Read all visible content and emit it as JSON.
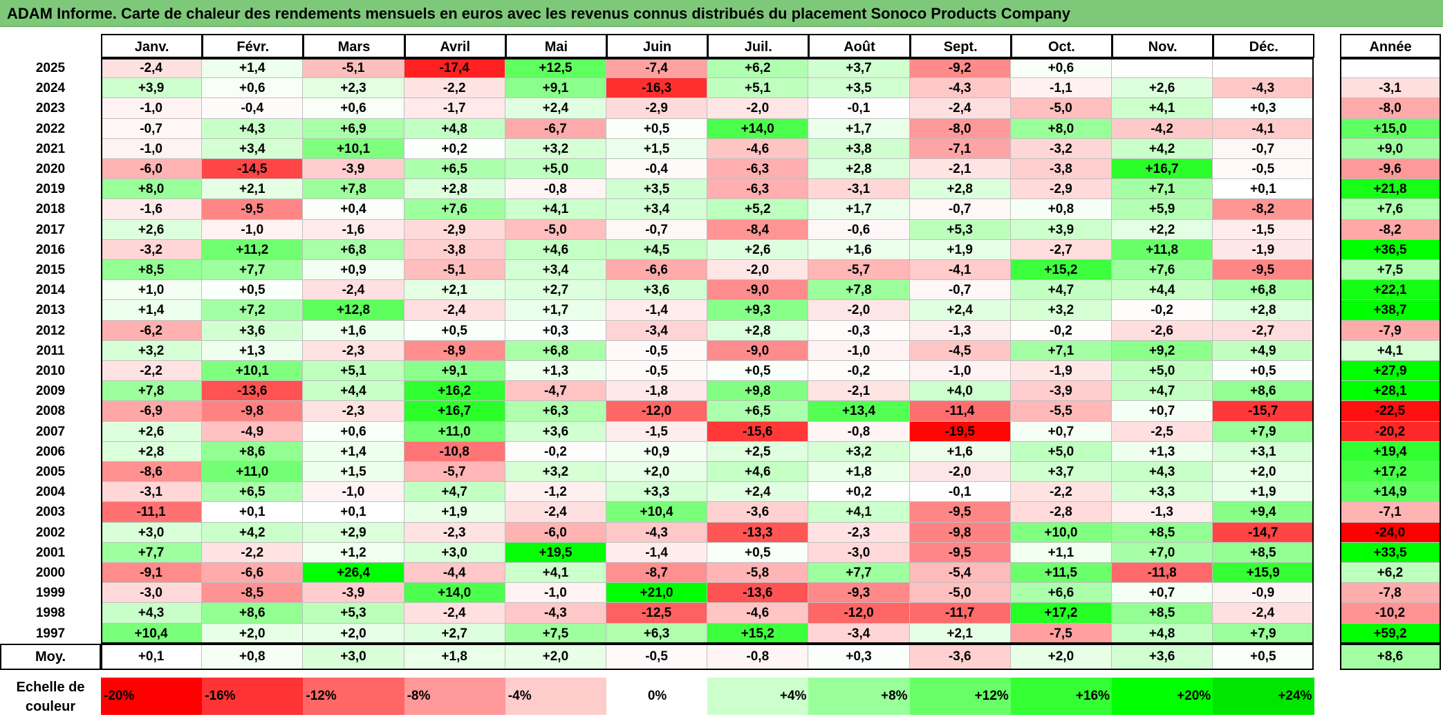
{
  "title": "ADAM Informe. Carte de chaleur des rendements mensuels en euros avec les revenus connus distribués du placement Sonoco Products Company",
  "chart_data": {
    "type": "heatmap",
    "months": [
      "Janv.",
      "Févr.",
      "Mars",
      "Avril",
      "Mai",
      "Juin",
      "Juil.",
      "Août",
      "Sept.",
      "Oct.",
      "Nov.",
      "Déc."
    ],
    "annual_header": "Année",
    "average_label": "Moy.",
    "rows": [
      {
        "year": "2025",
        "values": [
          "-2,4",
          "+1,4",
          "-5,1",
          "-17,4",
          "+12,5",
          "-7,4",
          "+6,2",
          "+3,7",
          "-9,2",
          "+0,6",
          "",
          ""
        ],
        "annual": ""
      },
      {
        "year": "2024",
        "values": [
          "+3,9",
          "+0,6",
          "+2,3",
          "-2,2",
          "+9,1",
          "-16,3",
          "+5,1",
          "+3,5",
          "-4,3",
          "-1,1",
          "+2,6",
          "-4,3"
        ],
        "annual": "-3,1"
      },
      {
        "year": "2023",
        "values": [
          "-1,0",
          "-0,4",
          "+0,6",
          "-1,7",
          "+2,4",
          "-2,9",
          "-2,0",
          "-0,1",
          "-2,4",
          "-5,0",
          "+4,1",
          "+0,3"
        ],
        "annual": "-8,0"
      },
      {
        "year": "2022",
        "values": [
          "-0,7",
          "+4,3",
          "+6,9",
          "+4,8",
          "-6,7",
          "+0,5",
          "+14,0",
          "+1,7",
          "-8,0",
          "+8,0",
          "-4,2",
          "-4,1"
        ],
        "annual": "+15,0"
      },
      {
        "year": "2021",
        "values": [
          "-1,0",
          "+3,4",
          "+10,1",
          "+0,2",
          "+3,2",
          "+1,5",
          "-4,6",
          "+3,8",
          "-7,1",
          "-3,2",
          "+4,2",
          "-0,7"
        ],
        "annual": "+9,0"
      },
      {
        "year": "2020",
        "values": [
          "-6,0",
          "-14,5",
          "-3,9",
          "+6,5",
          "+5,0",
          "-0,4",
          "-6,3",
          "+2,8",
          "-2,1",
          "-3,8",
          "+16,7",
          "-0,5"
        ],
        "annual": "-9,6"
      },
      {
        "year": "2019",
        "values": [
          "+8,0",
          "+2,1",
          "+7,8",
          "+2,8",
          "-0,8",
          "+3,5",
          "-6,3",
          "-3,1",
          "+2,8",
          "-2,9",
          "+7,1",
          "+0,1"
        ],
        "annual": "+21,8"
      },
      {
        "year": "2018",
        "values": [
          "-1,6",
          "-9,5",
          "+0,4",
          "+7,6",
          "+4,1",
          "+3,4",
          "+5,2",
          "+1,7",
          "-0,7",
          "+0,8",
          "+5,9",
          "-8,2"
        ],
        "annual": "+7,6"
      },
      {
        "year": "2017",
        "values": [
          "+2,6",
          "-1,0",
          "-1,6",
          "-2,9",
          "-5,0",
          "-0,7",
          "-8,4",
          "-0,6",
          "+5,3",
          "+3,9",
          "+2,2",
          "-1,5"
        ],
        "annual": "-8,2"
      },
      {
        "year": "2016",
        "values": [
          "-3,2",
          "+11,2",
          "+6,8",
          "-3,8",
          "+4,6",
          "+4,5",
          "+2,6",
          "+1,6",
          "+1,9",
          "-2,7",
          "+11,8",
          "-1,9"
        ],
        "annual": "+36,5"
      },
      {
        "year": "2015",
        "values": [
          "+8,5",
          "+7,7",
          "+0,9",
          "-5,1",
          "+3,4",
          "-6,6",
          "-2,0",
          "-5,7",
          "-4,1",
          "+15,2",
          "+7,6",
          "-9,5"
        ],
        "annual": "+7,5"
      },
      {
        "year": "2014",
        "values": [
          "+1,0",
          "+0,5",
          "-2,4",
          "+2,1",
          "+2,7",
          "+3,6",
          "-9,0",
          "+7,8",
          "-0,7",
          "+4,7",
          "+4,4",
          "+6,8"
        ],
        "annual": "+22,1"
      },
      {
        "year": "2013",
        "values": [
          "+1,4",
          "+7,2",
          "+12,8",
          "-2,4",
          "+1,7",
          "-1,4",
          "+9,3",
          "-2,0",
          "+2,4",
          "+3,2",
          "-0,2",
          "+2,8"
        ],
        "annual": "+38,7"
      },
      {
        "year": "2012",
        "values": [
          "-6,2",
          "+3,6",
          "+1,6",
          "+0,5",
          "+0,3",
          "-3,4",
          "+2,8",
          "-0,3",
          "-1,3",
          "-0,2",
          "-2,6",
          "-2,7"
        ],
        "annual": "-7,9"
      },
      {
        "year": "2011",
        "values": [
          "+3,2",
          "+1,3",
          "-2,3",
          "-8,9",
          "+6,8",
          "-0,5",
          "-9,0",
          "-1,0",
          "-4,5",
          "+7,1",
          "+9,2",
          "+4,9"
        ],
        "annual": "+4,1"
      },
      {
        "year": "2010",
        "values": [
          "-2,2",
          "+10,1",
          "+5,1",
          "+9,1",
          "+1,3",
          "-0,5",
          "+0,5",
          "-0,2",
          "-1,0",
          "-1,9",
          "+5,0",
          "+0,5"
        ],
        "annual": "+27,9"
      },
      {
        "year": "2009",
        "values": [
          "+7,8",
          "-13,6",
          "+4,4",
          "+16,2",
          "-4,7",
          "-1,8",
          "+9,8",
          "-2,1",
          "+4,0",
          "-3,9",
          "+4,7",
          "+8,6"
        ],
        "annual": "+28,1"
      },
      {
        "year": "2008",
        "values": [
          "-6,9",
          "-9,8",
          "-2,3",
          "+16,7",
          "+6,3",
          "-12,0",
          "+6,5",
          "+13,4",
          "-11,4",
          "-5,5",
          "+0,7",
          "-15,7"
        ],
        "annual": "-22,5"
      },
      {
        "year": "2007",
        "values": [
          "+2,6",
          "-4,9",
          "+0,6",
          "+11,0",
          "+3,6",
          "-1,5",
          "-15,6",
          "-0,8",
          "-19,5",
          "+0,7",
          "-2,5",
          "+7,9"
        ],
        "annual": "-20,2"
      },
      {
        "year": "2006",
        "values": [
          "+2,8",
          "+8,6",
          "+1,4",
          "-10,8",
          "-0,2",
          "+0,9",
          "+2,5",
          "+3,2",
          "+1,6",
          "+5,0",
          "+1,3",
          "+3,1"
        ],
        "annual": "+19,4"
      },
      {
        "year": "2005",
        "values": [
          "-8,6",
          "+11,0",
          "+1,5",
          "-5,7",
          "+3,2",
          "+2,0",
          "+4,6",
          "+1,8",
          "-2,0",
          "+3,7",
          "+4,3",
          "+2,0"
        ],
        "annual": "+17,2"
      },
      {
        "year": "2004",
        "values": [
          "-3,1",
          "+6,5",
          "-1,0",
          "+4,7",
          "-1,2",
          "+3,3",
          "+2,4",
          "+0,2",
          "-0,1",
          "-2,2",
          "+3,3",
          "+1,9"
        ],
        "annual": "+14,9"
      },
      {
        "year": "2003",
        "values": [
          "-11,1",
          "+0,1",
          "+0,1",
          "+1,9",
          "-2,4",
          "+10,4",
          "-3,6",
          "+4,1",
          "-9,5",
          "-2,8",
          "-1,3",
          "+9,4"
        ],
        "annual": "-7,1"
      },
      {
        "year": "2002",
        "values": [
          "+3,0",
          "+4,2",
          "+2,9",
          "-2,3",
          "-6,0",
          "-4,3",
          "-13,3",
          "-2,3",
          "-9,8",
          "+10,0",
          "+8,5",
          "-14,7"
        ],
        "annual": "-24,0"
      },
      {
        "year": "2001",
        "values": [
          "+7,7",
          "-2,2",
          "+1,2",
          "+3,0",
          "+19,5",
          "-1,4",
          "+0,5",
          "-3,0",
          "-9,5",
          "+1,1",
          "+7,0",
          "+8,5"
        ],
        "annual": "+33,5"
      },
      {
        "year": "2000",
        "values": [
          "-9,1",
          "-6,6",
          "+26,4",
          "-4,4",
          "+4,1",
          "-8,7",
          "-5,8",
          "+7,7",
          "-5,4",
          "+11,5",
          "-11,8",
          "+15,9"
        ],
        "annual": "+6,2"
      },
      {
        "year": "1999",
        "values": [
          "-3,0",
          "-8,5",
          "-3,9",
          "+14,0",
          "-1,0",
          "+21,0",
          "-13,6",
          "-9,3",
          "-5,0",
          "+6,6",
          "+0,7",
          "-0,9"
        ],
        "annual": "-7,8"
      },
      {
        "year": "1998",
        "values": [
          "+4,3",
          "+8,6",
          "+5,3",
          "-2,4",
          "-4,3",
          "-12,5",
          "-4,6",
          "-12,0",
          "-11,7",
          "+17,2",
          "+8,5",
          "-2,4"
        ],
        "annual": "-10,2"
      },
      {
        "year": "1997",
        "values": [
          "+10,4",
          "+2,0",
          "+2,0",
          "+2,7",
          "+7,5",
          "+6,3",
          "+15,2",
          "-3,4",
          "+2,1",
          "-7,5",
          "+4,8",
          "+7,9"
        ],
        "annual": "+59,2"
      }
    ],
    "averages": [
      "+0,1",
      "+0,8",
      "+3,0",
      "+1,8",
      "+2,0",
      "-0,5",
      "-0,8",
      "+0,3",
      "-3,6",
      "+2,0",
      "+3,6",
      "+0,5"
    ],
    "average_annual": "+8,6",
    "legend": {
      "label_line1": "Echelle de",
      "label_line2": "couleur",
      "steps": [
        {
          "label": "-20%",
          "value": -20,
          "color": "#ff0000"
        },
        {
          "label": "-16%",
          "value": -16,
          "color": "#ff3333"
        },
        {
          "label": "-12%",
          "value": -12,
          "color": "#ff6666"
        },
        {
          "label": "-8%",
          "value": -8,
          "color": "#ff9999"
        },
        {
          "label": "-4%",
          "value": -4,
          "color": "#ffcccc"
        },
        {
          "label": "0%",
          "value": 0,
          "color": "#ffffff"
        },
        {
          "label": "+4%",
          "value": 4,
          "color": "#ccffcc"
        },
        {
          "label": "+8%",
          "value": 8,
          "color": "#99ff99"
        },
        {
          "label": "+12%",
          "value": 12,
          "color": "#66ff66"
        },
        {
          "label": "+16%",
          "value": 16,
          "color": "#33ff33"
        },
        {
          "label": "+20%",
          "value": 20,
          "color": "#00ff00"
        },
        {
          "label": "+24%",
          "value": 24,
          "color": "#00e600"
        }
      ]
    },
    "colors": {
      "negative": "#ff0000",
      "neutral": "#ffffff",
      "positive": "#00ff00",
      "title_bar": "#7ec87a"
    }
  }
}
